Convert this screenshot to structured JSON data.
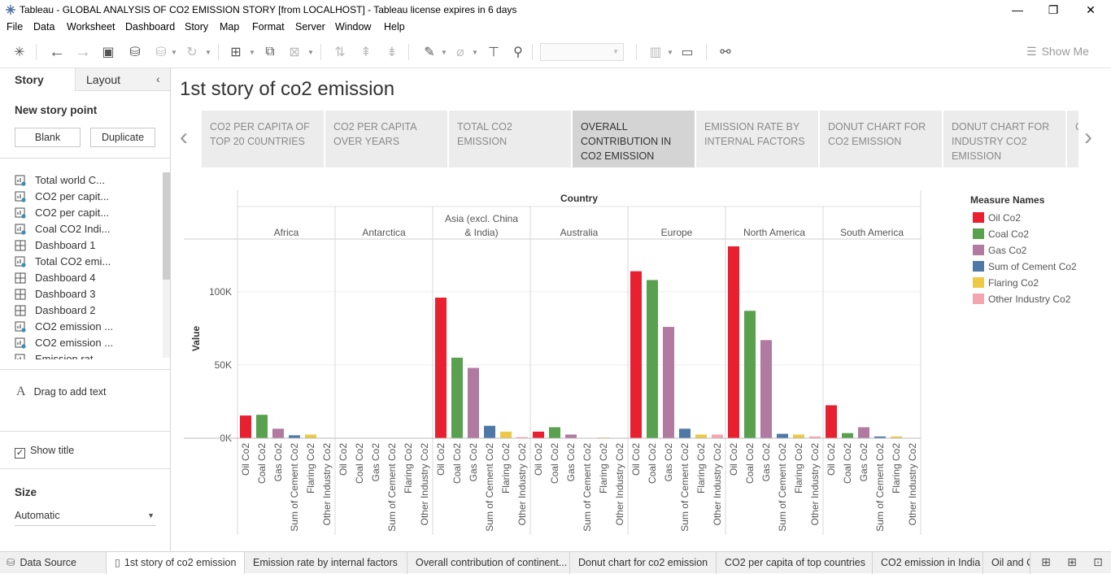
{
  "window": {
    "title": "Tableau - GLOBAL ANALYSIS OF CO2 EMISSION STORY [from LOCALHOST] - Tableau license expires in 6 days",
    "minimize": "—",
    "restore": "❐",
    "close": "✕"
  },
  "menu": [
    "File",
    "Data",
    "Worksheet",
    "Dashboard",
    "Story",
    "Map",
    "Format",
    "Server",
    "Window",
    "Help"
  ],
  "toolbar": {
    "show_me": "Show Me"
  },
  "left_panel": {
    "tab_story": "Story",
    "tab_layout": "Layout",
    "collapse": "‹",
    "new_story_point": "New story point",
    "blank_button": "Blank",
    "duplicate_button": "Duplicate",
    "sheets": [
      {
        "label": "Total world C...",
        "type": "worksheet"
      },
      {
        "label": "CO2 per capit...",
        "type": "worksheet"
      },
      {
        "label": "CO2 per capit...",
        "type": "worksheet"
      },
      {
        "label": "Coal CO2 Indi...",
        "type": "worksheet"
      },
      {
        "label": "Dashboard 1",
        "type": "dashboard"
      },
      {
        "label": "Total CO2 emi...",
        "type": "worksheet"
      },
      {
        "label": "Dashboard 4",
        "type": "dashboard"
      },
      {
        "label": "Dashboard 3",
        "type": "dashboard"
      },
      {
        "label": "Dashboard 2",
        "type": "dashboard"
      },
      {
        "label": "CO2 emission ...",
        "type": "worksheet"
      },
      {
        "label": "CO2 emission ...",
        "type": "worksheet"
      },
      {
        "label": "Emission rat...",
        "type": "worksheet"
      }
    ],
    "drag_text_icon": "A",
    "drag_text": "Drag to add text",
    "show_title": "Show title",
    "show_title_checked": "✓",
    "size_heading": "Size",
    "size_value": "Automatic"
  },
  "story": {
    "title": "1st story of co2 emission",
    "prev_arrow": "‹",
    "next_arrow": "›",
    "points": [
      {
        "label": "CO2 PER CAPITA OF TOP 20 C0UNTRIES",
        "active": false
      },
      {
        "label": "CO2 PER CAPITA OVER YEARS",
        "active": false
      },
      {
        "label": "TOTAL CO2 EMISSION",
        "active": false
      },
      {
        "label": "OVERALL CONTRIBUTION IN CO2 EMISSION",
        "active": true
      },
      {
        "label": "EMISSION RATE BY INTERNAL FACTORS",
        "active": false
      },
      {
        "label": "DONUT CHART FOR CO2 EMISSION",
        "active": false
      },
      {
        "label": "DONUT CHART FOR INDUSTRY CO2 EMISSION",
        "active": false
      },
      {
        "label": "C O",
        "active": false
      }
    ]
  },
  "chart_data": {
    "type": "bar",
    "column_header": "Country",
    "ylabel": "Value",
    "ylim": [
      0,
      136000
    ],
    "yticks": [
      0,
      50000,
      100000
    ],
    "ytick_labels": [
      "0K",
      "50K",
      "100K"
    ],
    "legend_title": "Measure Names",
    "legend_position": "right",
    "panels": [
      "Africa",
      "Antarctica",
      "Asia (excl. China & India)",
      "Australia",
      "Europe",
      "North America",
      "South America"
    ],
    "categories": [
      "Oil Co2",
      "Coal Co2",
      "Gas Co2",
      "Sum of Cement Co2",
      "Flaring Co2",
      "Other Industry Co2"
    ],
    "colors": [
      "#e8202f",
      "#59a14f",
      "#b07aa1",
      "#4e79a7",
      "#edc948",
      "#f4a6b0"
    ],
    "values": [
      [
        15500,
        16000,
        6500,
        2000,
        2500,
        300
      ],
      [
        0,
        0,
        0,
        0,
        0,
        0
      ],
      [
        96000,
        55000,
        48000,
        8500,
        4500,
        800
      ],
      [
        4500,
        7500,
        2500,
        200,
        500,
        100
      ],
      [
        114000,
        108000,
        76000,
        6500,
        2500,
        2500
      ],
      [
        131000,
        87000,
        67000,
        3000,
        2500,
        1200
      ],
      [
        22500,
        3500,
        7500,
        1200,
        1200,
        200
      ]
    ],
    "grid": "horizontal"
  },
  "bottom_tabs": {
    "data_source": "Data Source",
    "sheets": [
      "1st story of co2 emission",
      "Emission rate by internal factors",
      "Overall contribution of continent...",
      "Donut chart for co2 emission",
      "CO2 per capita of top countries",
      "CO2 emission in India",
      "Oil and Co"
    ],
    "active_index": 0
  }
}
